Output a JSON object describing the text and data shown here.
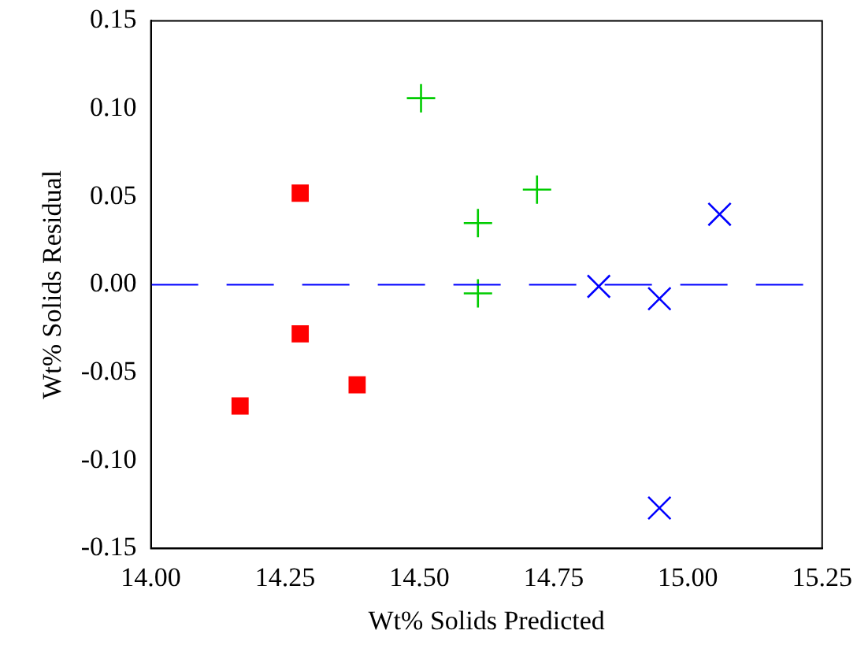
{
  "chart_data": {
    "type": "scatter",
    "xlabel": "Wt% Solids Predicted",
    "ylabel": "Wt% Solids Residual",
    "xlim": [
      14.0,
      15.25
    ],
    "ylim": [
      -0.15,
      0.15
    ],
    "xticks": [
      {
        "value": 14,
        "label": "14.00"
      },
      {
        "value": 14.25,
        "label": "14.25"
      },
      {
        "value": 14.5,
        "label": "14.50"
      },
      {
        "value": 14.75,
        "label": "14.75"
      },
      {
        "value": 15,
        "label": "15.00"
      },
      {
        "value": 15.25,
        "label": "15.25"
      }
    ],
    "yticks": [
      {
        "value": -0.15,
        "label": "-0.15"
      },
      {
        "value": -0.1,
        "label": "-0.10"
      },
      {
        "value": -0.05,
        "label": "-0.05"
      },
      {
        "value": 0,
        "label": "0.00"
      },
      {
        "value": 0.05,
        "label": "0.05"
      },
      {
        "value": 0.1,
        "label": "0.10"
      },
      {
        "value": 0.15,
        "label": "0.15"
      }
    ],
    "grid": false,
    "legend": false,
    "ref_lines": [
      {
        "axis": "y",
        "value": 0,
        "color": "#0000ff",
        "line_style": "dashed"
      }
    ],
    "series": [
      {
        "color": "#ff0000",
        "marker": "square",
        "x": [
          14.166,
          14.278,
          14.278,
          14.384
        ],
        "values": [
          -0.069,
          0.052,
          -0.028,
          -0.057
        ]
      },
      {
        "color": "#00cc00",
        "marker": "cross",
        "x": [
          14.503,
          14.609,
          14.609,
          14.719
        ],
        "values": [
          0.106,
          0.035,
          -0.005,
          0.054
        ]
      },
      {
        "color": "#0000ff",
        "marker": "x",
        "x": [
          14.834,
          14.947,
          15.059,
          14.947
        ],
        "values": [
          -0.001,
          -0.008,
          0.04,
          -0.127
        ]
      }
    ]
  }
}
